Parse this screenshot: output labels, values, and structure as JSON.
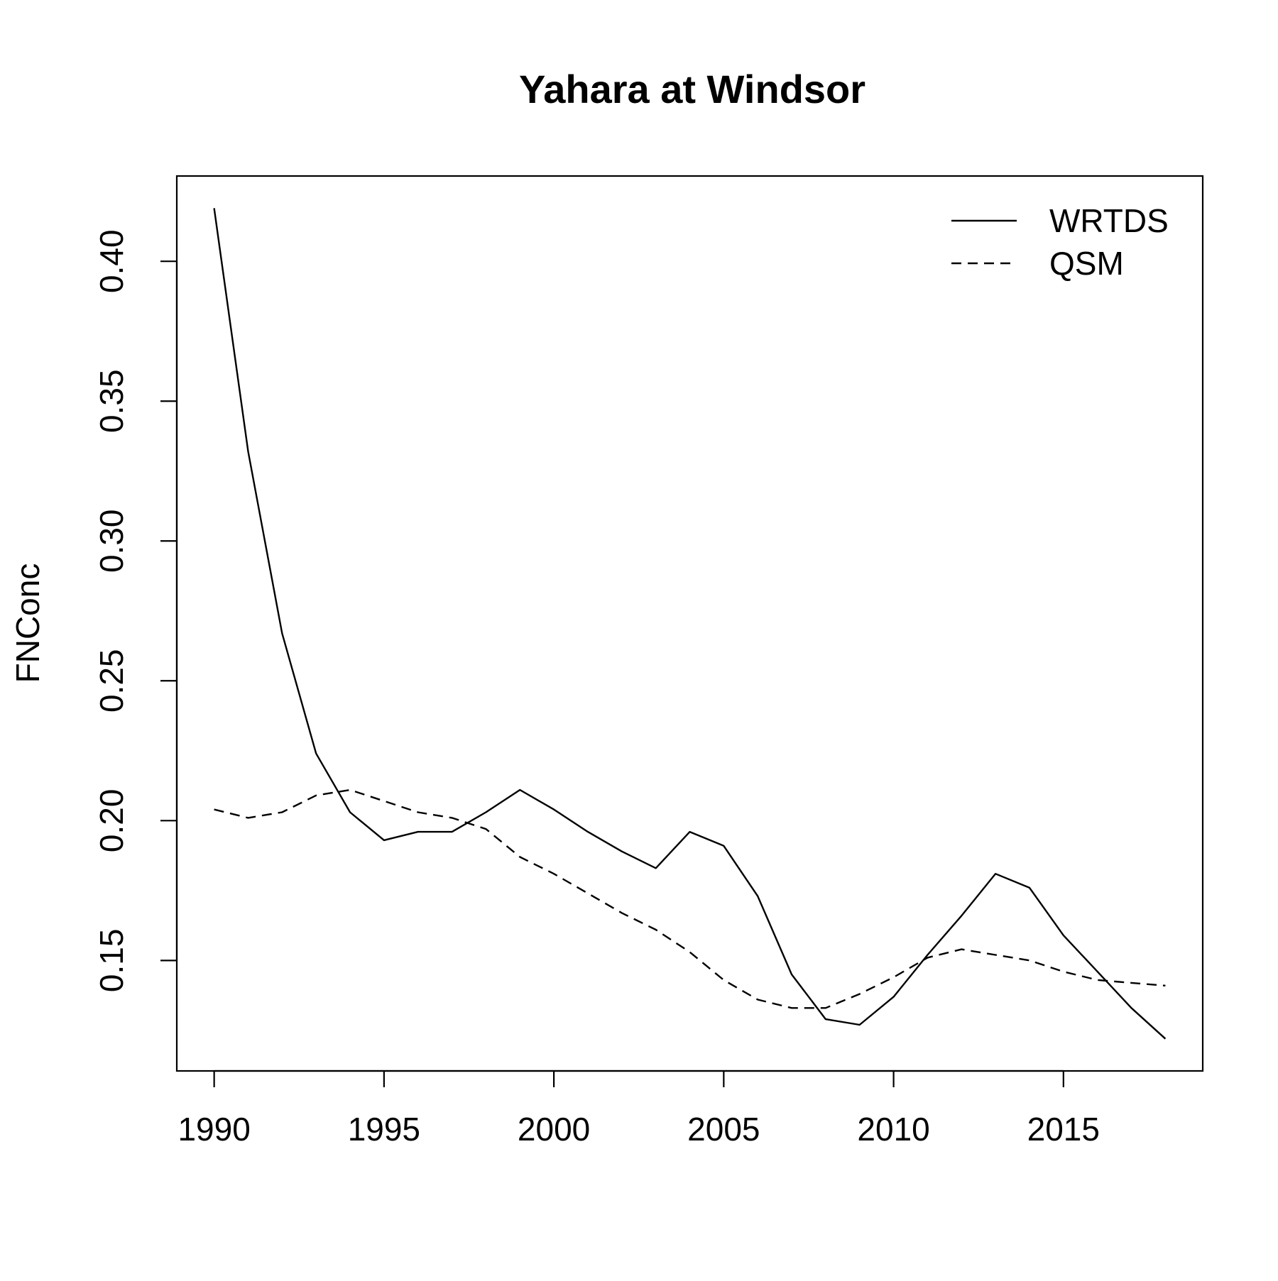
{
  "chart_data": {
    "type": "line",
    "title": "Yahara at Windsor",
    "xlabel": "",
    "ylabel": "FNConc",
    "xlim": [
      1988.9,
      2019.1
    ],
    "ylim": [
      0.1105,
      0.4305
    ],
    "x_ticks": [
      1990,
      1995,
      2000,
      2005,
      2010,
      2015
    ],
    "x_tick_labels": [
      "1990",
      "1995",
      "2000",
      "2005",
      "2010",
      "2015"
    ],
    "y_ticks": [
      0.15,
      0.2,
      0.25,
      0.3,
      0.35,
      0.4
    ],
    "y_tick_labels": [
      "0.15",
      "0.20",
      "0.25",
      "0.30",
      "0.35",
      "0.40"
    ],
    "grid": false,
    "legend_position": "top-right",
    "x": [
      1990,
      1991,
      1992,
      1993,
      1994,
      1995,
      1996,
      1997,
      1998,
      1999,
      2000,
      2001,
      2002,
      2003,
      2004,
      2005,
      2006,
      2007,
      2008,
      2009,
      2010,
      2011,
      2012,
      2013,
      2014,
      2015,
      2016,
      2017,
      2018
    ],
    "series": [
      {
        "name": "WRTDS",
        "line_style": "solid",
        "color": "#000000",
        "values": [
          0.419,
          0.332,
          0.267,
          0.224,
          0.203,
          0.193,
          0.196,
          0.196,
          0.203,
          0.211,
          0.204,
          0.196,
          0.189,
          0.183,
          0.196,
          0.191,
          0.173,
          0.145,
          0.129,
          0.127,
          0.137,
          0.152,
          0.166,
          0.181,
          0.176,
          0.159,
          0.146,
          0.133,
          0.122
        ]
      },
      {
        "name": "QSM",
        "line_style": "dashed",
        "color": "#000000",
        "values": [
          0.204,
          0.201,
          0.203,
          0.209,
          0.211,
          0.207,
          0.203,
          0.201,
          0.197,
          0.187,
          0.181,
          0.174,
          0.167,
          0.161,
          0.153,
          0.143,
          0.136,
          0.133,
          0.133,
          0.138,
          0.144,
          0.151,
          0.154,
          0.152,
          0.15,
          0.146,
          0.143,
          0.142,
          0.141
        ]
      }
    ]
  }
}
